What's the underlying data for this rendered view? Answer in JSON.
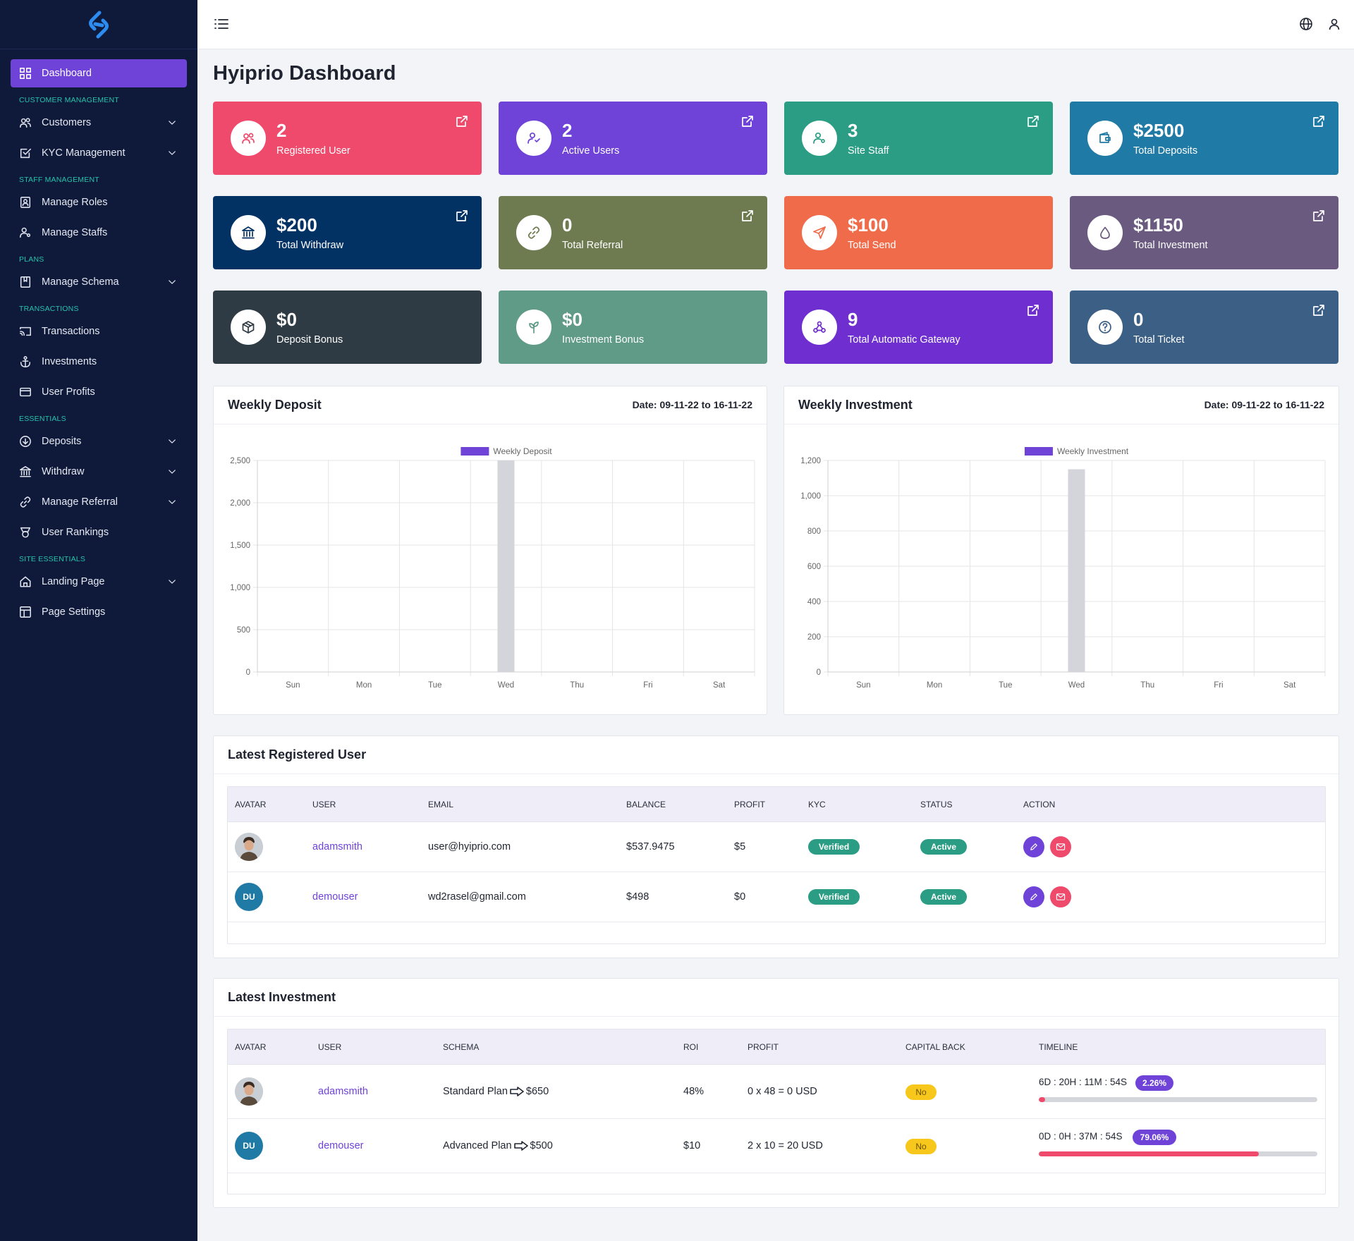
{
  "sidebar": {
    "items": [
      {
        "type": "item",
        "label": "Dashboard",
        "icon": "grid-icon",
        "active": true
      },
      {
        "type": "section",
        "label": "CUSTOMER MANAGEMENT"
      },
      {
        "type": "item",
        "label": "Customers",
        "icon": "users-icon",
        "chevron": true
      },
      {
        "type": "item",
        "label": "KYC Management",
        "icon": "check-square-icon",
        "chevron": true
      },
      {
        "type": "section",
        "label": "STAFF MANAGEMENT"
      },
      {
        "type": "item",
        "label": "Manage Roles",
        "icon": "id-card-icon"
      },
      {
        "type": "item",
        "label": "Manage Staffs",
        "icon": "user-cog-icon"
      },
      {
        "type": "section",
        "label": "PLANS"
      },
      {
        "type": "item",
        "label": "Manage Schema",
        "icon": "bookmark-icon",
        "chevron": true
      },
      {
        "type": "section",
        "label": "TRANSACTIONS"
      },
      {
        "type": "item",
        "label": "Transactions",
        "icon": "cast-icon"
      },
      {
        "type": "item",
        "label": "Investments",
        "icon": "anchor-icon"
      },
      {
        "type": "item",
        "label": "User Profits",
        "icon": "credit-card-icon"
      },
      {
        "type": "section",
        "label": "ESSENTIALS"
      },
      {
        "type": "item",
        "label": "Deposits",
        "icon": "arrow-down-circle-icon",
        "chevron": true
      },
      {
        "type": "item",
        "label": "Withdraw",
        "icon": "bank-icon",
        "chevron": true
      },
      {
        "type": "item",
        "label": "Manage Referral",
        "icon": "link-icon",
        "chevron": true
      },
      {
        "type": "item",
        "label": "User Rankings",
        "icon": "award-icon"
      },
      {
        "type": "section",
        "label": "SITE ESSENTIALS"
      },
      {
        "type": "item",
        "label": "Landing Page",
        "icon": "home-icon",
        "chevron": true
      },
      {
        "type": "item",
        "label": "Page Settings",
        "icon": "layout-icon"
      }
    ]
  },
  "page": {
    "title": "Hyiprio Dashboard"
  },
  "cards": [
    {
      "value": "2",
      "label": "Registered User",
      "color": "#ef4a6c",
      "icon": "users-icon",
      "ext": true
    },
    {
      "value": "2",
      "label": "Active Users",
      "color": "#6f42d8",
      "icon": "user-check-icon",
      "ext": true
    },
    {
      "value": "3",
      "label": "Site Staff",
      "color": "#2a9d84",
      "icon": "user-cog-icon",
      "ext": true
    },
    {
      "value": "$2500",
      "label": "Total Deposits",
      "color": "#1f7aa5",
      "icon": "wallet-icon",
      "ext": true
    },
    {
      "value": "$200",
      "label": "Total Withdraw",
      "color": "#023163",
      "icon": "bank-icon",
      "ext": true
    },
    {
      "value": "0",
      "label": "Total Referral",
      "color": "#6e7b50",
      "icon": "link-icon",
      "ext": true
    },
    {
      "value": "$100",
      "label": "Total Send",
      "color": "#ef6b4a",
      "icon": "send-icon",
      "ext": false
    },
    {
      "value": "$1150",
      "label": "Total Investment",
      "color": "#6a5a7f",
      "icon": "droplet-icon",
      "ext": true
    },
    {
      "value": "$0",
      "label": "Deposit Bonus",
      "color": "#2f3b44",
      "icon": "box-icon",
      "ext": false
    },
    {
      "value": "$0",
      "label": "Investment Bonus",
      "color": "#5f9b86",
      "icon": "sprout-icon",
      "ext": false
    },
    {
      "value": "9",
      "label": "Total Automatic Gateway",
      "color": "#6f2fd0",
      "icon": "webhook-icon",
      "ext": true
    },
    {
      "value": "0",
      "label": "Total Ticket",
      "color": "#3c5f86",
      "icon": "help-circle-icon",
      "ext": true
    }
  ],
  "weekly_deposit": {
    "title": "Weekly Deposit",
    "date": "Date: 09-11-22 to 16-11-22"
  },
  "weekly_investment": {
    "title": "Weekly Investment",
    "date": "Date: 09-11-22 to 16-11-22"
  },
  "chart_data": [
    {
      "type": "bar",
      "title": "Weekly Deposit",
      "categories": [
        "Sun",
        "Mon",
        "Tue",
        "Wed",
        "Thu",
        "Fri",
        "Sat"
      ],
      "series": [
        {
          "name": "Weekly Deposit",
          "values": [
            0,
            0,
            0,
            2500,
            0,
            0,
            0
          ]
        }
      ],
      "ylim": [
        0,
        2500
      ],
      "yticks": [
        "0",
        "500",
        "1,000",
        "1,500",
        "2,000",
        "2,500"
      ],
      "grid": true,
      "legend": "top",
      "bar_color": "#d4d5da",
      "legend_color": "#6f42d8"
    },
    {
      "type": "bar",
      "title": "Weekly Investment",
      "categories": [
        "Sun",
        "Mon",
        "Tue",
        "Wed",
        "Thu",
        "Fri",
        "Sat"
      ],
      "series": [
        {
          "name": "Weekly Investment",
          "values": [
            0,
            0,
            0,
            1150,
            0,
            0,
            0
          ]
        }
      ],
      "ylim": [
        0,
        1200
      ],
      "yticks": [
        "0",
        "200",
        "400",
        "600",
        "800",
        "1,000",
        "1,200"
      ],
      "grid": true,
      "legend": "top",
      "bar_color": "#d4d5da",
      "legend_color": "#6f42d8"
    }
  ],
  "users_table": {
    "title": "Latest Registered User",
    "headers": [
      "AVATAR",
      "USER",
      "EMAIL",
      "BALANCE",
      "PROFIT",
      "KYC",
      "STATUS",
      "ACTION"
    ],
    "rows": [
      {
        "avatar": "photo",
        "initials": "",
        "user": "adamsmith",
        "email": "user@hyiprio.com",
        "balance": "$537.9475",
        "profit": "$5",
        "kyc": "Verified",
        "status": "Active"
      },
      {
        "avatar": "initials",
        "initials": "DU",
        "user": "demouser",
        "email": "wd2rasel@gmail.com",
        "balance": "$498",
        "profit": "$0",
        "kyc": "Verified",
        "status": "Active"
      }
    ]
  },
  "investment_table": {
    "title": "Latest Investment",
    "headers": [
      "AVATAR",
      "USER",
      "SCHEMA",
      "ROI",
      "PROFIT",
      "CAPITAL BACK",
      "TIMELINE"
    ],
    "rows": [
      {
        "avatar": "photo",
        "initials": "",
        "user": "adamsmith",
        "schema": "Standard Plan",
        "amount": "$650",
        "roi": "48%",
        "profit": "0 x 48 = 0 USD",
        "capital_back": "No",
        "timeline": "6D : 20H : 11M : 54S",
        "progress_label": "2.26%",
        "progress": 2.26
      },
      {
        "avatar": "initials",
        "initials": "DU",
        "user": "demouser",
        "schema": "Advanced Plan",
        "amount": "$500",
        "roi": "$10",
        "profit": "2 x 10 = 20 USD",
        "capital_back": "No",
        "timeline": "0D : 0H : 37M : 54S",
        "progress_label": "79.06%",
        "progress": 79.06
      }
    ]
  }
}
